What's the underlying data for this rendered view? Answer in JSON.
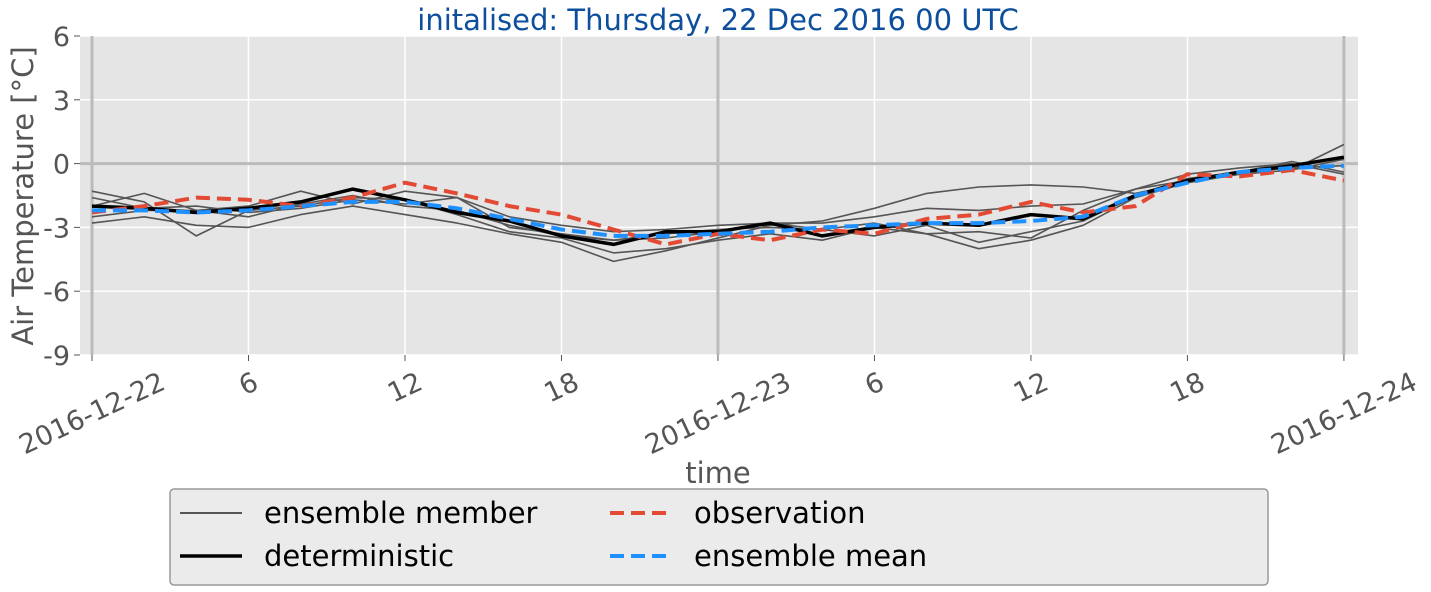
{
  "chart_data": {
    "type": "line",
    "title": "initalised: Thursday, 22 Dec 2016 00 UTC",
    "xlabel": "time",
    "ylabel": "Air Temperature [°C]",
    "x": [
      0,
      2,
      4,
      6,
      8,
      10,
      12,
      14,
      16,
      18,
      20,
      22,
      24,
      26,
      28,
      30,
      32,
      34,
      36,
      38,
      40,
      42,
      44,
      46,
      48
    ],
    "xlim": [
      -0.46,
      48.54
    ],
    "xticks": [
      {
        "value": 0,
        "label": "2016-12-22"
      },
      6,
      12,
      18,
      {
        "value": 24,
        "label": "2016-12-23"
      },
      {
        "value": 30,
        "label": "6"
      },
      {
        "value": 36,
        "label": "12"
      },
      {
        "value": 42,
        "label": "18"
      },
      {
        "value": 48,
        "label": "2016-12-24"
      }
    ],
    "ylim": [
      -9,
      6
    ],
    "yticks": [
      6,
      3,
      0,
      -3,
      -6,
      -9
    ],
    "grid": true,
    "vlines": [
      0,
      24,
      48
    ],
    "hlines": [
      0
    ],
    "legend": "lower center",
    "series": [
      {
        "name": "ensemble member",
        "color": "#555555",
        "linestyle": "solid",
        "members": [
          [
            -1.3,
            -1.8,
            -3.4,
            -2.2,
            -2.0,
            -1.6,
            -1.7,
            -2.4,
            -3.2,
            -3.5,
            -4.2,
            -4.0,
            -3.6,
            -3.3,
            -3.6,
            -3.0,
            -3.3,
            -4.0,
            -3.6,
            -2.9,
            -1.6,
            -0.9,
            -0.5,
            -0.3,
            0.2
          ],
          [
            -2.8,
            -2.5,
            -2.9,
            -3.0,
            -2.4,
            -2.0,
            -2.4,
            -2.8,
            -3.3,
            -3.7,
            -4.6,
            -4.1,
            -3.5,
            -2.9,
            -2.7,
            -2.1,
            -1.4,
            -1.1,
            -1.0,
            -1.1,
            -1.4,
            -0.9,
            -0.5,
            -0.3,
            0.9
          ],
          [
            -2.0,
            -1.4,
            -2.2,
            -2.0,
            -1.3,
            -1.9,
            -1.3,
            -1.6,
            -2.5,
            -2.9,
            -3.2,
            -3.1,
            -2.9,
            -2.8,
            -3.1,
            -2.8,
            -3.3,
            -3.2,
            -3.5,
            -2.2,
            -1.2,
            -0.8,
            -0.4,
            0.1,
            -0.4
          ],
          [
            -2.5,
            -2.2,
            -2.2,
            -2.5,
            -1.9,
            -1.5,
            -2.0,
            -2.2,
            -2.9,
            -3.4,
            -3.6,
            -3.5,
            -3.2,
            -2.8,
            -2.8,
            -2.5,
            -2.1,
            -2.2,
            -2.0,
            -1.9,
            -1.2,
            -0.5,
            -0.2,
            0.0,
            -0.5
          ],
          [
            -1.6,
            -2.1,
            -2.0,
            -2.3,
            -2.1,
            -1.7,
            -1.9,
            -1.6,
            -3.0,
            -3.3,
            -3.6,
            -3.3,
            -3.1,
            -3.0,
            -3.1,
            -3.4,
            -2.9,
            -3.7,
            -3.2,
            -2.7,
            -1.5,
            -0.7,
            -0.4,
            -0.2,
            -0.1
          ]
        ]
      },
      {
        "name": "deterministic",
        "color": "#000000",
        "linestyle": "solid",
        "values": [
          -2.0,
          -2.1,
          -2.3,
          -2.1,
          -1.8,
          -1.2,
          -1.7,
          -2.3,
          -2.7,
          -3.4,
          -3.8,
          -3.2,
          -3.2,
          -2.8,
          -3.4,
          -3.0,
          -2.8,
          -2.9,
          -2.4,
          -2.6,
          -1.5,
          -0.8,
          -0.4,
          -0.1,
          0.3
        ]
      },
      {
        "name": "observation",
        "color": "#e24a33",
        "linestyle": "dashed",
        "values": [
          -2.3,
          -2.0,
          -1.6,
          -1.7,
          -2.0,
          -1.6,
          -0.9,
          -1.4,
          -2.0,
          -2.4,
          -3.1,
          -3.8,
          -3.3,
          -3.6,
          -3.1,
          -3.3,
          -2.6,
          -2.4,
          -1.8,
          -2.3,
          -2.0,
          -0.5,
          -0.6,
          -0.3,
          -0.8
        ]
      },
      {
        "name": "ensemble mean",
        "color": "#1e90ff",
        "linestyle": "dashed",
        "values": [
          -2.2,
          -2.2,
          -2.3,
          -2.2,
          -2.0,
          -1.8,
          -1.8,
          -2.1,
          -2.6,
          -3.1,
          -3.4,
          -3.4,
          -3.3,
          -3.2,
          -3.0,
          -2.9,
          -2.8,
          -2.8,
          -2.7,
          -2.5,
          -1.5,
          -0.9,
          -0.4,
          -0.2,
          -0.1
        ]
      }
    ]
  }
}
